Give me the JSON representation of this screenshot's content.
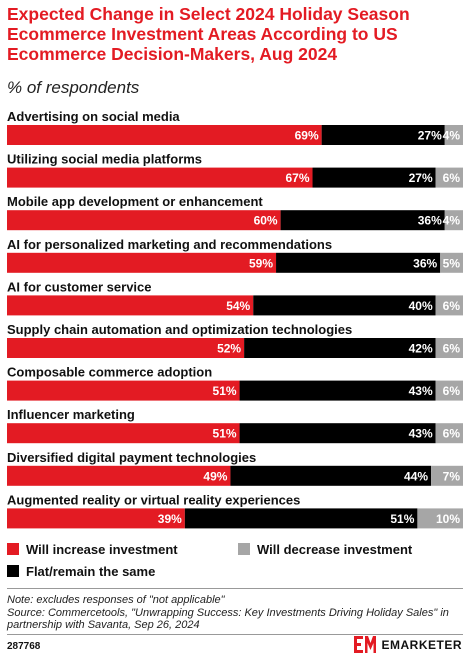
{
  "header": {
    "title": "Expected Change in Select 2024 Holiday Season Ecommerce Investment Areas According to US Ecommerce Decision-Makers, Aug 2024",
    "subtitle": "% of respondents"
  },
  "colors": {
    "increase": "#e31b23",
    "flat": "#000000",
    "decrease": "#a6a6a6",
    "title": "#e31b23"
  },
  "chart_data": {
    "type": "bar",
    "orientation": "horizontal",
    "stacked": true,
    "value_suffix": "%",
    "categories": [
      "Advertising on social media",
      "Utilizing social media platforms",
      "Mobile app development or enhancement",
      "AI for personalized marketing and recommendations",
      "AI for customer service",
      "Supply chain automation and optimization technologies",
      "Composable commerce adoption",
      "Influencer marketing",
      "Diversified digital payment technologies",
      "Augmented reality or virtual reality experiences"
    ],
    "series": [
      {
        "name": "Will increase investment",
        "color": "#e31b23",
        "values": [
          69,
          67,
          60,
          59,
          54,
          52,
          51,
          51,
          49,
          39
        ]
      },
      {
        "name": "Flat/remain the same",
        "color": "#000000",
        "values": [
          27,
          27,
          36,
          36,
          40,
          42,
          43,
          43,
          44,
          51
        ]
      },
      {
        "name": "Will decrease investment",
        "color": "#a6a6a6",
        "values": [
          4,
          6,
          4,
          5,
          6,
          6,
          6,
          6,
          7,
          10
        ]
      }
    ]
  },
  "legend": {
    "increase": "Will increase investment",
    "decrease": "Will decrease investment",
    "flat": "Flat/remain the same"
  },
  "footer": {
    "note": "Note: excludes responses of \"not applicable\"",
    "source": "Source: Commercetools, \"Unwrapping Success: Key Investments Driving Holiday Sales\" in partnership with Savanta, Sep 26, 2024",
    "chart_id": "287768",
    "brand": "EMARKETER"
  }
}
